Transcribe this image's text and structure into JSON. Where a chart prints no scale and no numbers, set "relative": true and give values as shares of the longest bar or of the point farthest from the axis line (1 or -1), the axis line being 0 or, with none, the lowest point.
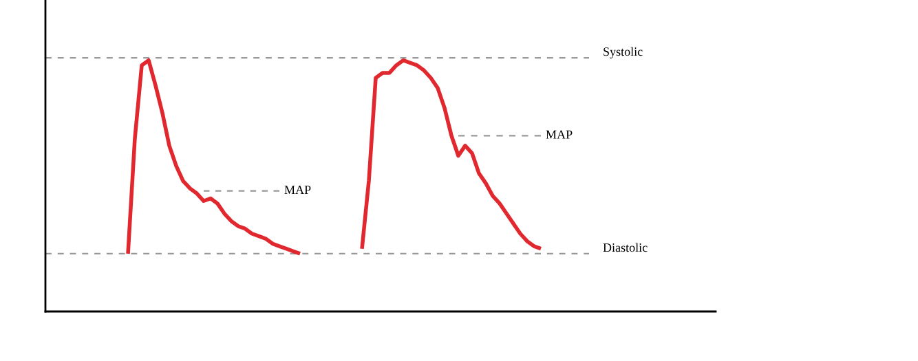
{
  "chart_data": {
    "type": "line",
    "relative": true,
    "legend": false,
    "categories": [
      null,
      null,
      null,
      null,
      null,
      null,
      null,
      null,
      null,
      null,
      null,
      null,
      null,
      null,
      null,
      null,
      null,
      null,
      null,
      null,
      null,
      null,
      null,
      null,
      null,
      null,
      null,
      null,
      null,
      null,
      null,
      null,
      null,
      null,
      null,
      null,
      null,
      null,
      null,
      null,
      null,
      null,
      null,
      null,
      null,
      null,
      null,
      null,
      null,
      null,
      null,
      null,
      null,
      null,
      null,
      null,
      null,
      null,
      null,
      null,
      null,
      null,
      null,
      null,
      null,
      null,
      null,
      null,
      null,
      null,
      null,
      null,
      null,
      null,
      null,
      null,
      null,
      null,
      null,
      null,
      null,
      null,
      null,
      null,
      null,
      null,
      null,
      null,
      null,
      null,
      null,
      null,
      null,
      null,
      null,
      null,
      null,
      null
    ],
    "series": [
      {
        "color": "#e0282e",
        "values": [
          null,
          null,
          null,
          null,
          null,
          null,
          null,
          null,
          null,
          null,
          null,
          null,
          0.23,
          0.69,
          0.98,
          1,
          0.9,
          0.79,
          0.66,
          0.58,
          0.52,
          0.49,
          0.47,
          0.44,
          0.45,
          0.43,
          0.39,
          0.36,
          0.34,
          0.33,
          0.31,
          0.3,
          0.29,
          0.27,
          0.26,
          0.25,
          0.24,
          0.23,
          null,
          null,
          null,
          null,
          null,
          null,
          null,
          null,
          null,
          null,
          null,
          null,
          null,
          null,
          null,
          null,
          null,
          null,
          null,
          null,
          null,
          null,
          null,
          null,
          null,
          null,
          null,
          null,
          null,
          null,
          null,
          null,
          null,
          null,
          null,
          null,
          null,
          null,
          null,
          null,
          null,
          null,
          null,
          null,
          null,
          null,
          null,
          null,
          null,
          null,
          null,
          null,
          null,
          null,
          null,
          null,
          null,
          null,
          null,
          null
        ]
      },
      {
        "color": "#e0282e",
        "values": [
          null,
          null,
          null,
          null,
          null,
          null,
          null,
          null,
          null,
          null,
          null,
          null,
          null,
          null,
          null,
          null,
          null,
          null,
          null,
          null,
          null,
          null,
          null,
          null,
          null,
          null,
          null,
          null,
          null,
          null,
          null,
          null,
          null,
          null,
          null,
          null,
          null,
          null,
          null,
          null,
          null,
          null,
          null,
          null,
          null,
          null,
          0.25,
          0.52,
          0.93,
          0.95,
          0.95,
          0.98,
          1,
          0.99,
          0.98,
          0.96,
          0.93,
          0.89,
          0.81,
          0.7,
          0.62,
          0.66,
          0.63,
          0.55,
          0.51,
          0.46,
          0.43,
          0.39,
          0.35,
          0.31,
          0.28,
          0.26,
          0.25,
          null,
          null,
          null,
          null,
          null,
          null,
          null,
          null,
          null,
          null,
          null,
          null,
          null,
          null,
          null,
          null,
          null,
          null,
          null,
          null,
          null,
          null,
          null,
          null,
          null
        ]
      },
      {
        "name": "MAP",
        "color": "#999999",
        "line_style": "dashed",
        "values": [
          null,
          null,
          null,
          null,
          null,
          null,
          null,
          null,
          null,
          null,
          null,
          null,
          null,
          null,
          null,
          null,
          null,
          null,
          null,
          null,
          null,
          null,
          null,
          0.48,
          0.48,
          0.48,
          0.48,
          0.48,
          0.48,
          0.48,
          0.48,
          0.48,
          0.48,
          0.48,
          0.48,
          null,
          null,
          null,
          null,
          null,
          null,
          null,
          null,
          null,
          null,
          null,
          null,
          null,
          null,
          null,
          null,
          null,
          null,
          null,
          null,
          null,
          null,
          null,
          null,
          null,
          null,
          null,
          null,
          null,
          null,
          null,
          null,
          null,
          null,
          null,
          null,
          null,
          null,
          null,
          null,
          null,
          null,
          null,
          null,
          null,
          null,
          null,
          null,
          null,
          null,
          null,
          null,
          null,
          null,
          null,
          null,
          null,
          null,
          null,
          null,
          null,
          null,
          null
        ]
      },
      {
        "name": "MAP",
        "color": "#999999",
        "line_style": "dashed",
        "values": [
          null,
          null,
          null,
          null,
          null,
          null,
          null,
          null,
          null,
          null,
          null,
          null,
          null,
          null,
          null,
          null,
          null,
          null,
          null,
          null,
          null,
          null,
          null,
          null,
          null,
          null,
          null,
          null,
          null,
          null,
          null,
          null,
          null,
          null,
          null,
          null,
          null,
          null,
          null,
          null,
          null,
          null,
          null,
          null,
          null,
          null,
          null,
          null,
          null,
          null,
          null,
          null,
          null,
          null,
          null,
          null,
          null,
          null,
          null,
          null,
          0.7,
          0.7,
          0.7,
          0.7,
          0.7,
          0.7,
          0.7,
          0.7,
          0.7,
          0.7,
          0.7,
          0.7,
          0.7,
          null,
          null,
          null,
          null,
          null,
          null,
          null,
          null,
          null,
          null,
          null,
          null,
          null,
          null,
          null,
          null,
          null,
          null,
          null,
          null,
          null,
          null,
          null,
          null,
          null
        ]
      }
    ],
    "ref_lines": [
      {
        "axis": "y",
        "value": 1.01,
        "label": "Systolic",
        "color": "#999999",
        "line_style": "dashed"
      },
      {
        "axis": "y",
        "value": 0.23,
        "label": "Diastolic",
        "color": "#999999",
        "line_style": "dashed"
      }
    ]
  }
}
